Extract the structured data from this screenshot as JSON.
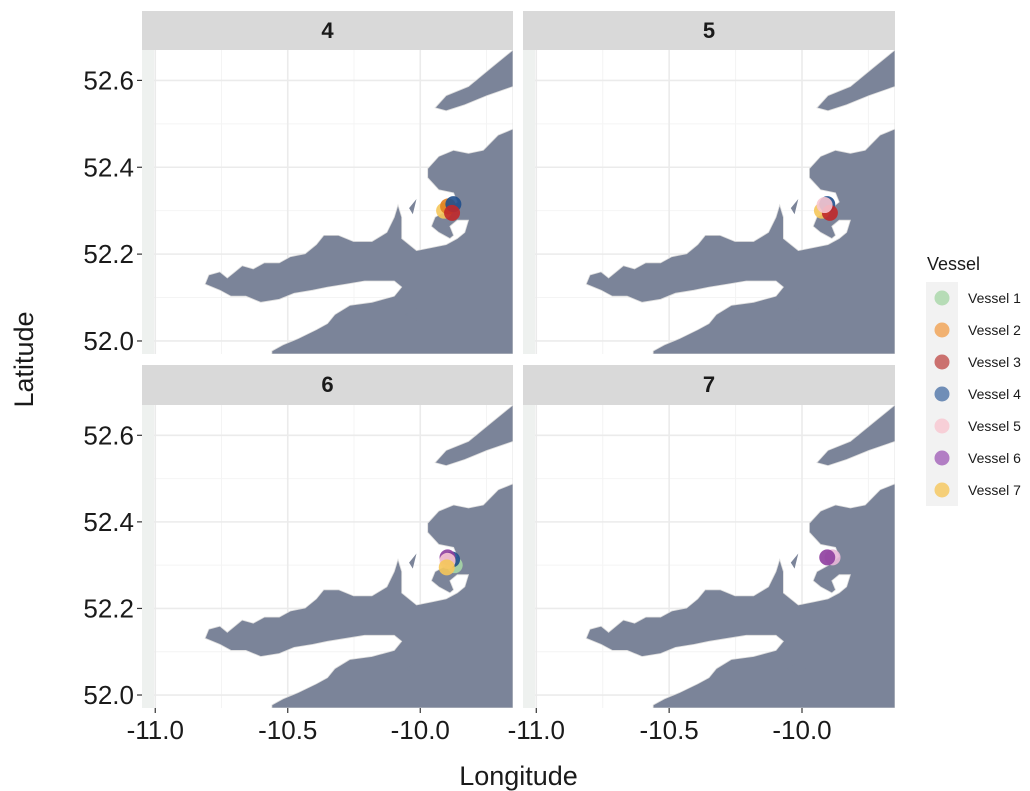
{
  "chart_data": {
    "type": "scatter",
    "facet_titles": [
      "4",
      "5",
      "6",
      "7"
    ],
    "xlabel": "Longitude",
    "ylabel": "Latitude",
    "xlim": [
      -11.05,
      -9.65
    ],
    "ylim": [
      51.97,
      52.67
    ],
    "x_ticks": [
      -11.0,
      -10.5,
      -10.0
    ],
    "x_tick_labels": [
      "-11.0",
      "-10.5",
      "-10.0"
    ],
    "y_ticks": [
      52.0,
      52.2,
      52.4,
      52.6
    ],
    "y_tick_labels": [
      "52.0",
      "52.2",
      "52.4",
      "52.6"
    ],
    "grid": true,
    "background_map": "coastline",
    "land_color": "#7b8499",
    "legend": {
      "title": "Vessel",
      "placement": "right",
      "entries": [
        {
          "name": "Vessel 1",
          "color": "#a6d6a6"
        },
        {
          "name": "Vessel 2",
          "color": "#f0a050"
        },
        {
          "name": "Vessel 3",
          "color": "#c0504d"
        },
        {
          "name": "Vessel 4",
          "color": "#4f74a8"
        },
        {
          "name": "Vessel 5",
          "color": "#f7c6d0"
        },
        {
          "name": "Vessel 6",
          "color": "#a160b8"
        },
        {
          "name": "Vessel 7",
          "color": "#f5c65a"
        }
      ]
    },
    "panels": [
      {
        "facet": "4",
        "points": [
          {
            "vessel": "Vessel 7",
            "lon": -9.91,
            "lat": 52.3,
            "color": "#f5c65a"
          },
          {
            "vessel": "Vessel 2",
            "lon": -9.895,
            "lat": 52.31,
            "color": "#e0801f"
          },
          {
            "vessel": "Vessel 4",
            "lon": -9.875,
            "lat": 52.315,
            "color": "#1f4e8c"
          },
          {
            "vessel": "Vessel 3",
            "lon": -9.88,
            "lat": 52.295,
            "color": "#c0282a"
          }
        ]
      },
      {
        "facet": "5",
        "points": [
          {
            "vessel": "Vessel 7",
            "lon": -9.925,
            "lat": 52.3,
            "color": "#f5c65a"
          },
          {
            "vessel": "Vessel 4",
            "lon": -9.905,
            "lat": 52.315,
            "color": "#1f4e8c"
          },
          {
            "vessel": "Vessel 3",
            "lon": -9.895,
            "lat": 52.295,
            "color": "#c0282a"
          },
          {
            "vessel": "Vessel 5",
            "lon": -9.915,
            "lat": 52.313,
            "color": "#f7c6d0"
          }
        ]
      },
      {
        "facet": "6",
        "points": [
          {
            "vessel": "Vessel 1",
            "lon": -9.87,
            "lat": 52.3,
            "color": "#a6d6a6"
          },
          {
            "vessel": "Vessel 4",
            "lon": -9.88,
            "lat": 52.313,
            "color": "#1f4e8c"
          },
          {
            "vessel": "Vessel 6",
            "lon": -9.897,
            "lat": 52.318,
            "color": "#8e3e9e"
          },
          {
            "vessel": "Vessel 5",
            "lon": -9.897,
            "lat": 52.31,
            "color": "#f7c6d0"
          },
          {
            "vessel": "Vessel 7",
            "lon": -9.9,
            "lat": 52.295,
            "color": "#f5c65a"
          }
        ]
      },
      {
        "facet": "7",
        "points": [
          {
            "vessel": "Vessel 5",
            "lon": -9.885,
            "lat": 52.318,
            "color": "#e8b8d8"
          },
          {
            "vessel": "Vessel 6",
            "lon": -9.905,
            "lat": 52.318,
            "color": "#8e3e9e"
          }
        ]
      }
    ]
  }
}
